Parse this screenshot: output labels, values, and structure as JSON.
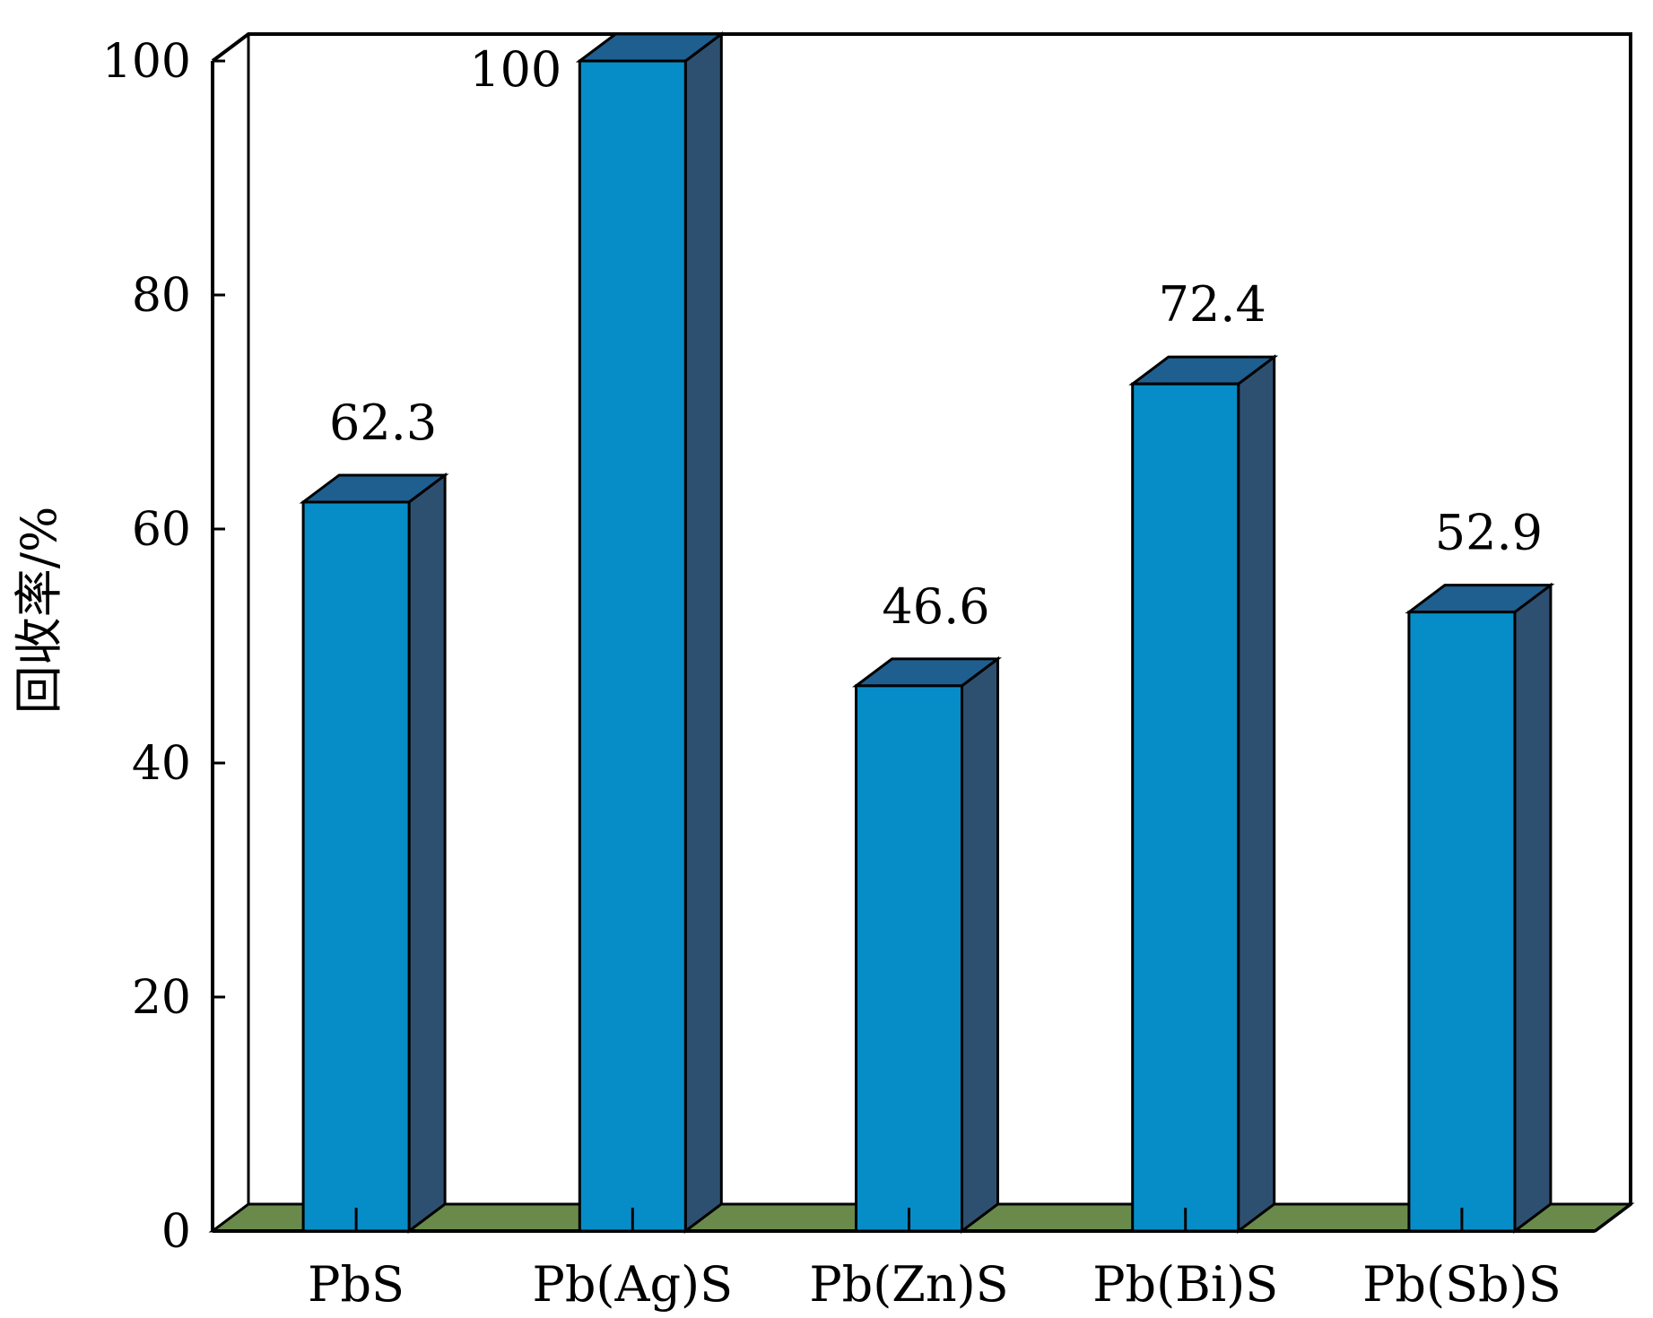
{
  "chart_data": {
    "type": "bar",
    "style": "3d",
    "title": "",
    "xlabel": "",
    "ylabel": "回收率/%",
    "categories": [
      "PbS",
      "Pb(Ag)S",
      "Pb(Zn)S",
      "Pb(Bi)S",
      "Pb(Sb)S"
    ],
    "values": [
      62.3,
      100,
      46.6,
      72.4,
      52.9
    ],
    "data_labels": [
      "62.3",
      "100",
      "46.6",
      "72.4",
      "52.9"
    ],
    "ylim": [
      0,
      100
    ],
    "yticks": [
      0,
      20,
      40,
      60,
      80,
      100
    ],
    "grid": false,
    "legend": "none",
    "colors": {
      "bar_front": "#068dc7",
      "bar_top": "#1f5f90",
      "bar_side": "#2e5070",
      "floor": "#6a8a4c",
      "frame": "#000000"
    }
  }
}
